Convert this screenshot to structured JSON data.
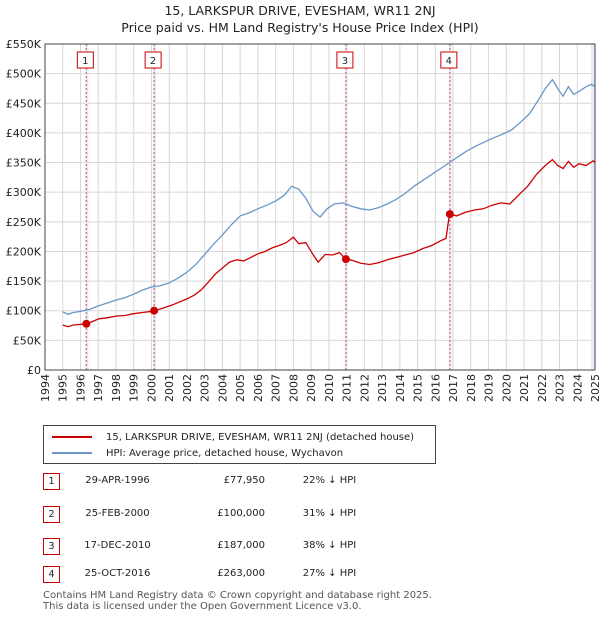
{
  "title_line1": "15, LARKSPUR DRIVE, EVESHAM, WR11 2NJ",
  "title_line2": "Price paid vs. HM Land Registry's House Price Index (HPI)",
  "colors": {
    "red": "#cc0000",
    "blue": "#6a97c8",
    "shade": "#dce6f2",
    "grid": "#d8d8d8"
  },
  "chart_data": {
    "type": "line",
    "xlim": [
      1994,
      2025
    ],
    "ylim": [
      0,
      550000
    ],
    "y_ticks": [
      {
        "value": 0,
        "label": "£0"
      },
      {
        "value": 50000,
        "label": "£50K"
      },
      {
        "value": 100000,
        "label": "£100K"
      },
      {
        "value": 150000,
        "label": "£150K"
      },
      {
        "value": 200000,
        "label": "£200K"
      },
      {
        "value": 250000,
        "label": "£250K"
      },
      {
        "value": 300000,
        "label": "£300K"
      },
      {
        "value": 350000,
        "label": "£350K"
      },
      {
        "value": 400000,
        "label": "£400K"
      },
      {
        "value": 450000,
        "label": "£450K"
      },
      {
        "value": 500000,
        "label": "£500K"
      },
      {
        "value": 550000,
        "label": "£550K"
      }
    ],
    "x_ticks": [
      "1994",
      "1995",
      "1996",
      "1997",
      "1998",
      "1999",
      "2000",
      "2001",
      "2002",
      "2003",
      "2004",
      "2005",
      "2006",
      "2007",
      "2008",
      "2009",
      "2010",
      "2011",
      "2012",
      "2013",
      "2014",
      "2015",
      "2016",
      "2017",
      "2018",
      "2019",
      "2020",
      "2021",
      "2022",
      "2023",
      "2024",
      "2025"
    ],
    "series": [
      {
        "name": "15, LARKSPUR DRIVE, EVESHAM, WR11 2NJ (detached house)",
        "color": "#cc0000",
        "points": [
          [
            1995.0,
            76000
          ],
          [
            1995.3,
            73000
          ],
          [
            1995.6,
            76000
          ],
          [
            1996.0,
            77000
          ],
          [
            1996.33,
            77950
          ],
          [
            1996.7,
            82000
          ],
          [
            1997.0,
            86000
          ],
          [
            1997.5,
            88000
          ],
          [
            1998.0,
            91000
          ],
          [
            1998.5,
            92000
          ],
          [
            1999.0,
            95000
          ],
          [
            1999.5,
            97000
          ],
          [
            2000.0,
            99000
          ],
          [
            2000.15,
            100000
          ],
          [
            2000.4,
            102000
          ],
          [
            2000.8,
            106000
          ],
          [
            2001.2,
            110000
          ],
          [
            2001.6,
            115000
          ],
          [
            2002.0,
            120000
          ],
          [
            2002.4,
            126000
          ],
          [
            2002.8,
            135000
          ],
          [
            2003.2,
            148000
          ],
          [
            2003.6,
            162000
          ],
          [
            2004.0,
            172000
          ],
          [
            2004.4,
            182000
          ],
          [
            2004.8,
            186000
          ],
          [
            2005.2,
            184000
          ],
          [
            2005.6,
            190000
          ],
          [
            2006.0,
            196000
          ],
          [
            2006.4,
            200000
          ],
          [
            2006.8,
            206000
          ],
          [
            2007.2,
            210000
          ],
          [
            2007.6,
            215000
          ],
          [
            2008.0,
            224000
          ],
          [
            2008.3,
            213000
          ],
          [
            2008.7,
            215000
          ],
          [
            2009.1,
            195000
          ],
          [
            2009.4,
            182000
          ],
          [
            2009.8,
            195000
          ],
          [
            2010.2,
            194000
          ],
          [
            2010.6,
            198000
          ],
          [
            2010.96,
            187000
          ],
          [
            2011.3,
            185000
          ],
          [
            2011.8,
            180000
          ],
          [
            2012.3,
            178000
          ],
          [
            2012.8,
            181000
          ],
          [
            2013.3,
            186000
          ],
          [
            2013.8,
            190000
          ],
          [
            2014.3,
            194000
          ],
          [
            2014.8,
            198000
          ],
          [
            2015.3,
            205000
          ],
          [
            2015.8,
            210000
          ],
          [
            2016.3,
            218000
          ],
          [
            2016.6,
            222000
          ],
          [
            2016.8,
            263000
          ],
          [
            2017.2,
            260000
          ],
          [
            2017.7,
            266000
          ],
          [
            2018.2,
            270000
          ],
          [
            2018.7,
            272000
          ],
          [
            2019.2,
            278000
          ],
          [
            2019.7,
            282000
          ],
          [
            2020.2,
            280000
          ],
          [
            2020.7,
            295000
          ],
          [
            2021.2,
            310000
          ],
          [
            2021.7,
            330000
          ],
          [
            2022.2,
            345000
          ],
          [
            2022.6,
            355000
          ],
          [
            2022.9,
            345000
          ],
          [
            2023.2,
            340000
          ],
          [
            2023.5,
            352000
          ],
          [
            2023.8,
            342000
          ],
          [
            2024.1,
            348000
          ],
          [
            2024.5,
            345000
          ],
          [
            2024.9,
            353000
          ],
          [
            2025.0,
            350000
          ]
        ]
      },
      {
        "name": "HPI: Average price, detached house, Wychavon",
        "color": "#6a97c8",
        "points": [
          [
            1995.0,
            98000
          ],
          [
            1995.3,
            94000
          ],
          [
            1995.6,
            97000
          ],
          [
            1996.0,
            99000
          ],
          [
            1996.5,
            102000
          ],
          [
            1997.0,
            108000
          ],
          [
            1997.5,
            113000
          ],
          [
            1998.0,
            118000
          ],
          [
            1998.5,
            122000
          ],
          [
            1999.0,
            128000
          ],
          [
            1999.5,
            135000
          ],
          [
            2000.0,
            140000
          ],
          [
            2000.5,
            142000
          ],
          [
            2001.0,
            147000
          ],
          [
            2001.5,
            155000
          ],
          [
            2002.0,
            165000
          ],
          [
            2002.5,
            178000
          ],
          [
            2003.0,
            195000
          ],
          [
            2003.5,
            212000
          ],
          [
            2004.0,
            228000
          ],
          [
            2004.5,
            245000
          ],
          [
            2005.0,
            260000
          ],
          [
            2005.5,
            265000
          ],
          [
            2006.0,
            272000
          ],
          [
            2006.5,
            278000
          ],
          [
            2007.0,
            285000
          ],
          [
            2007.5,
            295000
          ],
          [
            2007.9,
            310000
          ],
          [
            2008.3,
            305000
          ],
          [
            2008.7,
            290000
          ],
          [
            2009.1,
            268000
          ],
          [
            2009.5,
            258000
          ],
          [
            2009.9,
            272000
          ],
          [
            2010.3,
            280000
          ],
          [
            2010.8,
            282000
          ],
          [
            2011.3,
            276000
          ],
          [
            2011.8,
            272000
          ],
          [
            2012.3,
            270000
          ],
          [
            2012.8,
            274000
          ],
          [
            2013.3,
            280000
          ],
          [
            2013.8,
            288000
          ],
          [
            2014.3,
            298000
          ],
          [
            2014.8,
            310000
          ],
          [
            2015.3,
            320000
          ],
          [
            2015.8,
            330000
          ],
          [
            2016.3,
            340000
          ],
          [
            2016.8,
            350000
          ],
          [
            2017.3,
            360000
          ],
          [
            2017.8,
            370000
          ],
          [
            2018.3,
            378000
          ],
          [
            2018.8,
            385000
          ],
          [
            2019.3,
            392000
          ],
          [
            2019.8,
            398000
          ],
          [
            2020.3,
            405000
          ],
          [
            2020.8,
            418000
          ],
          [
            2021.3,
            432000
          ],
          [
            2021.8,
            455000
          ],
          [
            2022.2,
            475000
          ],
          [
            2022.6,
            490000
          ],
          [
            2022.9,
            475000
          ],
          [
            2023.2,
            462000
          ],
          [
            2023.5,
            478000
          ],
          [
            2023.8,
            465000
          ],
          [
            2024.1,
            470000
          ],
          [
            2024.5,
            478000
          ],
          [
            2024.8,
            482000
          ],
          [
            2025.0,
            478000
          ]
        ]
      }
    ],
    "sales": [
      {
        "num": "1",
        "date": "29-APR-1996",
        "x": 1996.33,
        "price": 77950,
        "price_label": "£77,950",
        "pct": "22% ↓ HPI"
      },
      {
        "num": "2",
        "date": "25-FEB-2000",
        "x": 2000.15,
        "price": 100000,
        "price_label": "£100,000",
        "pct": "31% ↓ HPI"
      },
      {
        "num": "3",
        "date": "17-DEC-2010",
        "x": 2010.96,
        "price": 187000,
        "price_label": "£187,000",
        "pct": "38% ↓ HPI"
      },
      {
        "num": "4",
        "date": "25-OCT-2016",
        "x": 2016.82,
        "price": 263000,
        "price_label": "£263,000",
        "pct": "27% ↓ HPI"
      }
    ]
  },
  "legend": {
    "red_label": "15, LARKSPUR DRIVE, EVESHAM, WR11 2NJ (detached house)",
    "blue_label": "HPI: Average price, detached house, Wychavon"
  },
  "footer": {
    "line1": "Contains HM Land Registry data © Crown copyright and database right 2025.",
    "line2": "This data is licensed under the Open Government Licence v3.0."
  }
}
